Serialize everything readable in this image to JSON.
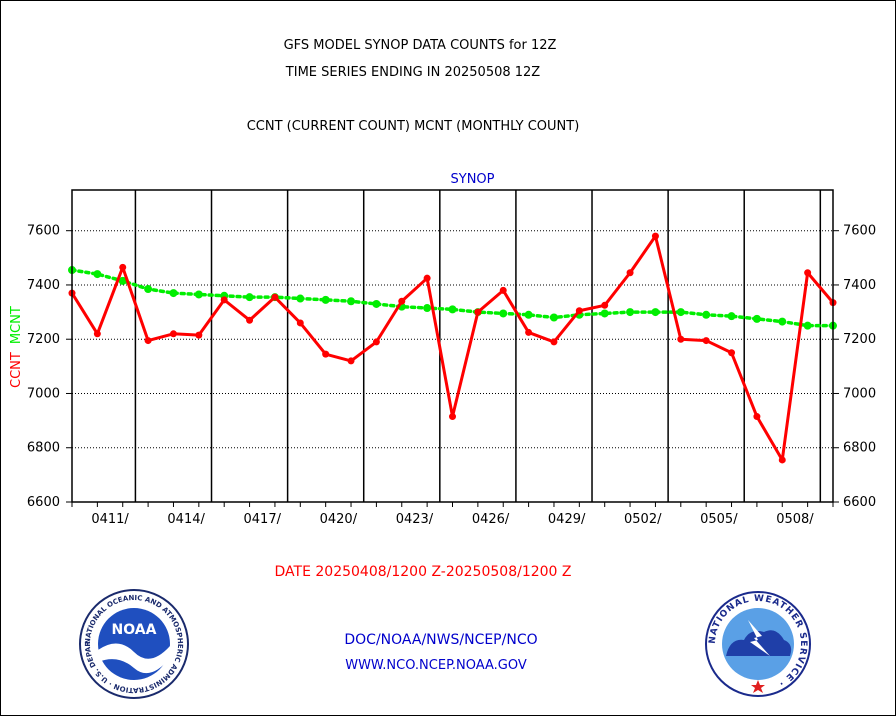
{
  "header": {
    "title_line1": "GFS MODEL SYNOP DATA COUNTS for 12Z",
    "title_line2": "TIME SERIES ENDING IN 20250508 12Z",
    "subtitle": "CCNT (CURRENT COUNT) MCNT (MONTHLY COUNT)"
  },
  "footer": {
    "date_range": "DATE 20250408/1200 Z-20250508/1200 Z",
    "link1": "DOC/NOAA/NWS/NCEP/NCO",
    "link2": "WWW.NCO.NCEP.NOAA.GOV"
  },
  "logos": {
    "noaa_text": "NOAA",
    "noaa_ring": "NATIONAL OCEANIC AND ATMOSPHERIC ADMINISTRATION · U.S. DEPARTMENT OF COMMERCE ·",
    "nws_ring": "NATIONAL WEATHER SERVICE ·"
  },
  "colors": {
    "ccnt": "#ff0000",
    "mcnt": "#00ee00",
    "title_blue": "#0000cc",
    "grid": "#000000"
  },
  "chart_data": {
    "type": "line",
    "title": "SYNOP",
    "ylabel_ccnt": "CCNT",
    "ylabel_mcnt": "MCNT",
    "ylim": [
      6600,
      7750
    ],
    "yticks": [
      6600,
      6800,
      7000,
      7200,
      7400,
      7600
    ],
    "xlim": [
      0,
      30
    ],
    "xtick_positions": [
      1.5,
      4.5,
      7.5,
      10.5,
      13.5,
      16.5,
      19.5,
      22.5,
      25.5,
      28.5
    ],
    "xtick_labels": [
      "0411/",
      "0414/",
      "0417/",
      "0420/",
      "0423/",
      "0426/",
      "0429/",
      "0502/",
      "0505/",
      "0508/"
    ],
    "vlines": [
      2.5,
      5.5,
      8.5,
      11.5,
      14.5,
      17.5,
      20.5,
      23.5,
      26.5,
      29.5
    ],
    "grid": true,
    "series": [
      {
        "name": "CCNT",
        "color": "#ff0000",
        "values": [
          7370,
          7220,
          7465,
          7195,
          7220,
          7215,
          7345,
          7270,
          7355,
          7260,
          7145,
          7120,
          7190,
          7340,
          7425,
          6915,
          7300,
          7380,
          7225,
          7190,
          7305,
          7325,
          7445,
          7580,
          7200,
          7195,
          7150,
          6915,
          6755,
          7445,
          7335
        ]
      },
      {
        "name": "MCNT",
        "color": "#00ee00",
        "values": [
          7455,
          7440,
          7415,
          7385,
          7370,
          7365,
          7360,
          7355,
          7355,
          7350,
          7345,
          7340,
          7330,
          7320,
          7315,
          7310,
          7300,
          7295,
          7290,
          7280,
          7290,
          7295,
          7300,
          7300,
          7300,
          7290,
          7285,
          7275,
          7265,
          7250,
          7250
        ]
      }
    ]
  }
}
